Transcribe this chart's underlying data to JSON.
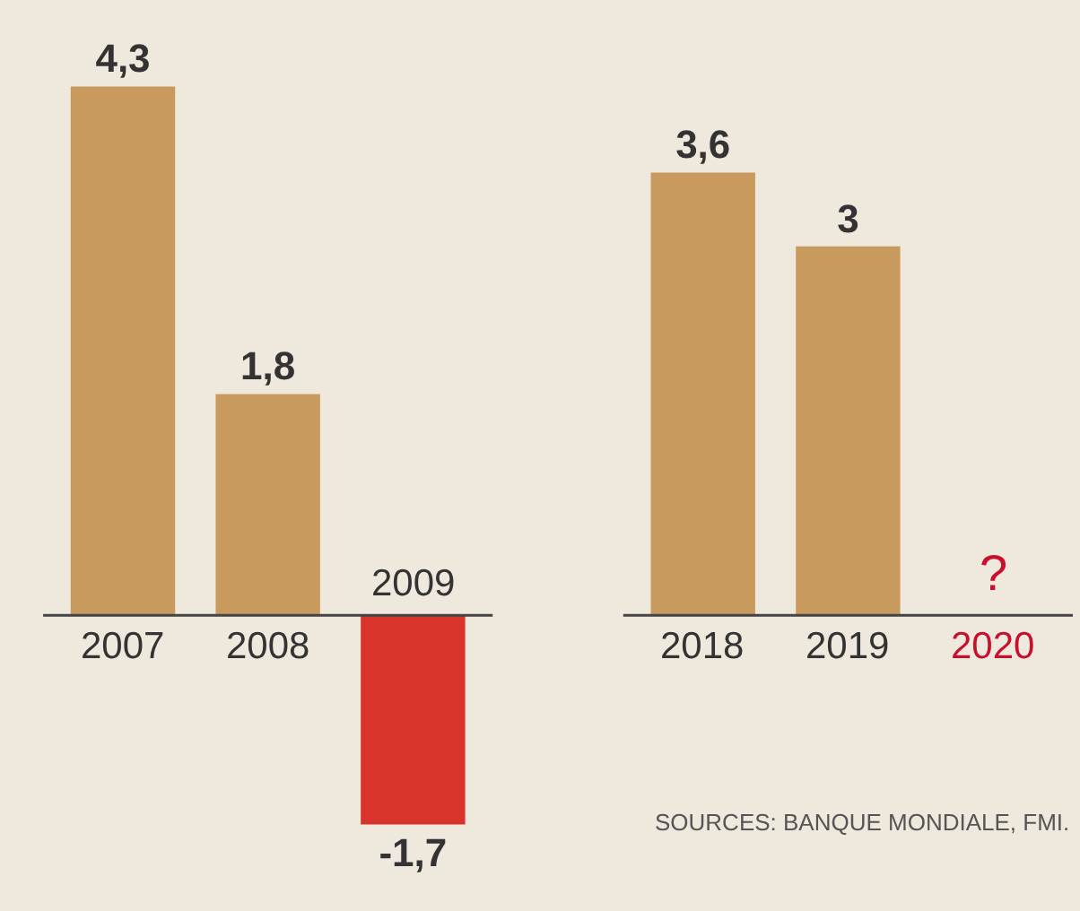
{
  "chart_data": {
    "type": "bar",
    "categories": [
      "2007",
      "2008",
      "2009",
      null,
      "2018",
      "2019",
      "2020"
    ],
    "values": [
      4.3,
      1.8,
      -1.7,
      null,
      3.6,
      3,
      null
    ],
    "colors": [
      "#c99a5e",
      "#c99a5e",
      "#d8342c",
      "#c99a5e",
      "#c99a5e",
      "#c99a5e",
      "#c8102e"
    ],
    "value_labels": [
      "4,3",
      "1,8",
      "-1,7",
      null,
      "3,6",
      "3",
      "?"
    ],
    "annotations": [
      "SOURCES: BANQUE MONDIALE, FMI."
    ],
    "ref_lines": [
      {
        "axis": "y",
        "value": 0,
        "color": "#444444"
      }
    ]
  }
}
